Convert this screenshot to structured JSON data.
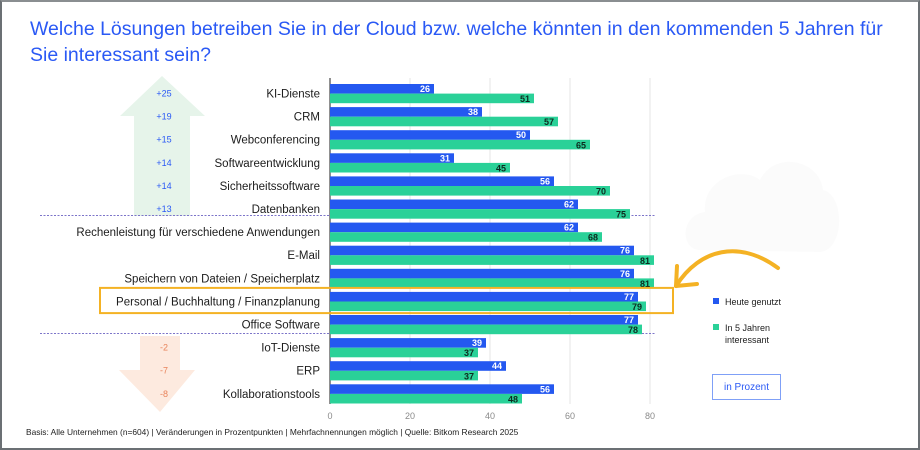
{
  "title": "Welche Lösungen betreiben Sie in der Cloud bzw. welche könnten in den kommenden 5 Jahren für Sie interessant sein?",
  "footer": "Basis: Alle Unternehmen (n=604) | Veränderungen in Prozentpunkten | Mehrfachnennungen möglich | Quelle: Bitkom Research 2025",
  "unit_label": "in Prozent",
  "colors": {
    "today": "#2458f0",
    "future": "#2ad198",
    "title": "#2a59f5",
    "highlight": "#f4b224",
    "up_arrow": "#e6f4ea",
    "down_arrow": "#fdeadf",
    "delta_up": "#2a59f5",
    "delta_down": "#e8835a"
  },
  "highlighted_category": "Personal / Buchhaltung / Finanzplanung",
  "chart_data": {
    "type": "bar",
    "orientation": "horizontal",
    "title": "Welche Lösungen betreiben Sie in der Cloud bzw. welche könnten in den kommenden 5 Jahren für Sie interessant sein?",
    "xlabel": "",
    "ylabel": "",
    "xlim": [
      0,
      80
    ],
    "xticks": [
      0,
      20,
      40,
      60,
      80
    ],
    "grid": true,
    "legend_position": "right",
    "categories": [
      "KI-Dienste",
      "CRM",
      "Webconferencing",
      "Softwareentwicklung",
      "Sicherheitssoftware",
      "Datenbanken",
      "Rechenleistung für verschiedene Anwendungen",
      "E-Mail",
      "Speichern von Dateien / Speicherplatz",
      "Personal / Buchhaltung / Finanzplanung",
      "Office Software",
      "IoT-Dienste",
      "ERP",
      "Kollaborationstools"
    ],
    "series": [
      {
        "name": "Heute genutzt",
        "values": [
          26,
          38,
          50,
          31,
          56,
          62,
          62,
          76,
          76,
          77,
          77,
          39,
          44,
          56
        ]
      },
      {
        "name": "In 5 Jahren interessant",
        "values": [
          51,
          57,
          65,
          45,
          70,
          75,
          68,
          81,
          81,
          79,
          78,
          37,
          37,
          48
        ]
      }
    ],
    "annotations": {
      "change_labels": [
        "+25",
        "+19",
        "+15",
        "+14",
        "+14",
        "+13",
        "",
        "",
        "",
        "",
        "",
        "-2",
        "-7",
        "-8"
      ],
      "groups": [
        "increase",
        "increase",
        "increase",
        "increase",
        "increase",
        "increase",
        "neutral",
        "neutral",
        "neutral",
        "neutral",
        "neutral",
        "decrease",
        "decrease",
        "decrease"
      ]
    }
  }
}
